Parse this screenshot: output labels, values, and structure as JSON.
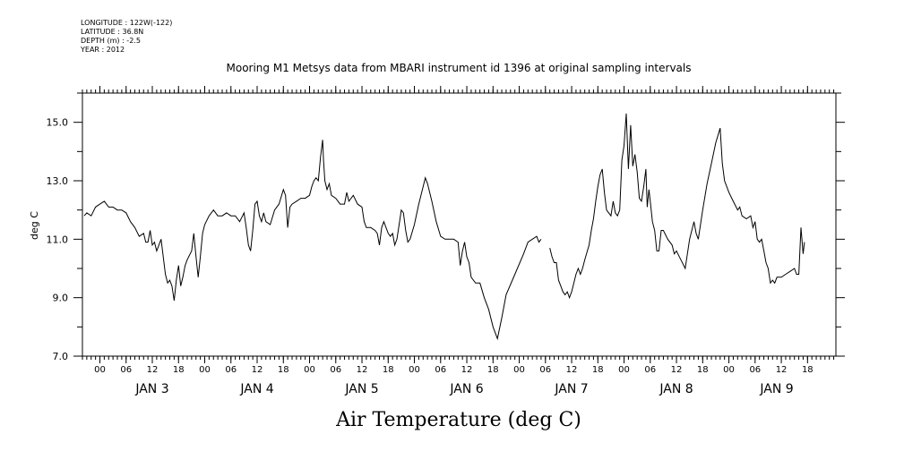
{
  "header": {
    "longitude": "LONGITUDE : 122W(-122)",
    "latitude": "LATITUDE : 36.8N",
    "depth": "DEPTH (m) : -2.5",
    "year": "YEAR : 2012"
  },
  "chart_data": {
    "type": "line",
    "title": "Mooring M1 Metsys data from MBARI instrument id 1396 at original sampling intervals",
    "xlabel": "Air Temperature (deg C)",
    "ylabel": "deg C",
    "ylim": [
      7.0,
      16.0
    ],
    "xlim_hours": [
      -4,
      134
    ],
    "y_ticks": [
      "7.0",
      "9.0",
      "11.0",
      "13.0",
      "15.0"
    ],
    "x_hour_ticks": [
      "00",
      "06",
      "12",
      "18",
      "00",
      "06",
      "12",
      "18",
      "00",
      "06",
      "12",
      "18",
      "00",
      "06",
      "12",
      "18",
      "00",
      "06",
      "12",
      "18",
      "00",
      "06",
      "12",
      "18",
      "00",
      "06",
      "12",
      "18"
    ],
    "day_labels": [
      "JAN  3",
      "JAN  4",
      "JAN  5",
      "JAN  6",
      "JAN  7",
      "JAN  8",
      "JAN  9"
    ],
    "grid": false,
    "series": [
      {
        "segments": [
          [
            [
              -3.6,
              11.8
            ],
            [
              -3,
              11.9
            ],
            [
              -2,
              11.8
            ],
            [
              -1,
              12.1
            ],
            [
              0,
              12.2
            ],
            [
              1,
              12.3
            ],
            [
              2,
              12.1
            ],
            [
              3,
              12.1
            ],
            [
              4,
              12.0
            ],
            [
              5,
              12.0
            ],
            [
              6,
              11.9
            ],
            [
              7,
              11.6
            ],
            [
              8,
              11.4
            ],
            [
              9,
              11.1
            ],
            [
              10,
              11.2
            ],
            [
              10.5,
              10.9
            ],
            [
              11,
              10.9
            ],
            [
              11.5,
              11.3
            ],
            [
              12,
              10.8
            ],
            [
              12.5,
              10.9
            ],
            [
              13,
              10.6
            ],
            [
              14,
              11.0
            ],
            [
              14.5,
              10.4
            ],
            [
              15,
              9.8
            ],
            [
              15.5,
              9.5
            ],
            [
              16,
              9.6
            ],
            [
              16.5,
              9.4
            ],
            [
              17,
              8.9
            ],
            [
              17.5,
              9.6
            ],
            [
              18,
              10.1
            ],
            [
              18.5,
              9.4
            ],
            [
              19,
              9.7
            ],
            [
              19.5,
              10.1
            ],
            [
              20,
              10.3
            ],
            [
              21,
              10.6
            ],
            [
              21.5,
              11.2
            ],
            [
              22,
              10.4
            ],
            [
              22.5,
              9.7
            ],
            [
              23,
              10.4
            ],
            [
              23.5,
              11.2
            ],
            [
              24,
              11.5
            ],
            [
              25,
              11.8
            ],
            [
              26,
              12.0
            ],
            [
              27,
              11.8
            ],
            [
              28,
              11.8
            ],
            [
              29,
              11.9
            ],
            [
              30,
              11.8
            ],
            [
              31,
              11.8
            ],
            [
              32,
              11.6
            ],
            [
              33,
              11.9
            ],
            [
              33.5,
              11.4
            ],
            [
              34,
              10.8
            ],
            [
              34.5,
              10.6
            ],
            [
              35,
              11.3
            ],
            [
              35.5,
              12.2
            ],
            [
              36,
              12.3
            ],
            [
              36.5,
              11.8
            ],
            [
              37,
              11.6
            ],
            [
              37.5,
              11.9
            ],
            [
              38,
              11.6
            ],
            [
              39,
              11.5
            ],
            [
              40,
              12.0
            ],
            [
              41,
              12.2
            ],
            [
              42,
              12.7
            ],
            [
              42.5,
              12.5
            ],
            [
              43,
              11.4
            ],
            [
              43.5,
              12.1
            ],
            [
              44,
              12.2
            ],
            [
              45,
              12.3
            ],
            [
              46,
              12.4
            ],
            [
              47,
              12.4
            ],
            [
              48,
              12.5
            ],
            [
              48.5,
              12.8
            ],
            [
              49,
              13.0
            ],
            [
              49.5,
              13.1
            ],
            [
              50,
              13.0
            ],
            [
              50.5,
              13.8
            ],
            [
              51,
              14.4
            ],
            [
              51.2,
              13.7
            ],
            [
              51.5,
              13.0
            ],
            [
              52,
              12.7
            ],
            [
              52.5,
              12.9
            ],
            [
              53,
              12.5
            ],
            [
              54,
              12.4
            ],
            [
              55,
              12.2
            ],
            [
              56,
              12.2
            ],
            [
              56.5,
              12.6
            ],
            [
              57,
              12.3
            ],
            [
              58,
              12.5
            ],
            [
              59,
              12.2
            ],
            [
              60,
              12.1
            ],
            [
              60.5,
              11.6
            ],
            [
              61,
              11.4
            ],
            [
              62,
              11.4
            ],
            [
              63,
              11.3
            ],
            [
              63.5,
              11.2
            ],
            [
              64,
              10.8
            ],
            [
              64.5,
              11.4
            ],
            [
              65,
              11.6
            ],
            [
              66,
              11.2
            ],
            [
              66.5,
              11.1
            ],
            [
              67,
              11.2
            ],
            [
              67.5,
              10.8
            ],
            [
              68,
              11.0
            ],
            [
              68.5,
              11.5
            ],
            [
              69,
              12.0
            ],
            [
              69.5,
              11.9
            ],
            [
              70,
              11.3
            ],
            [
              70.5,
              10.9
            ],
            [
              71,
              11.0
            ],
            [
              72,
              11.5
            ],
            [
              73,
              12.2
            ],
            [
              74,
              12.8
            ],
            [
              74.5,
              13.1
            ],
            [
              75,
              12.9
            ],
            [
              76,
              12.3
            ],
            [
              77,
              11.6
            ],
            [
              78,
              11.1
            ],
            [
              79,
              11.0
            ],
            [
              80,
              11.0
            ],
            [
              81,
              11.0
            ],
            [
              82,
              10.9
            ],
            [
              82.5,
              10.1
            ],
            [
              83,
              10.6
            ],
            [
              83.5,
              10.9
            ],
            [
              84,
              10.4
            ],
            [
              84.5,
              10.2
            ],
            [
              85,
              9.7
            ],
            [
              86,
              9.5
            ],
            [
              87,
              9.5
            ],
            [
              88,
              9.0
            ],
            [
              89,
              8.6
            ],
            [
              90,
              8.0
            ],
            [
              91,
              7.6
            ],
            [
              92,
              8.3
            ],
            [
              93,
              9.1
            ],
            [
              95,
              9.8
            ],
            [
              97,
              10.5
            ],
            [
              98,
              10.9
            ],
            [
              99,
              11.0
            ],
            [
              100,
              11.1
            ],
            [
              100.5,
              10.9
            ],
            [
              101,
              11.0
            ]
          ],
          [
            [
              103,
              10.7
            ],
            [
              103.5,
              10.4
            ],
            [
              104,
              10.2
            ],
            [
              104.5,
              10.2
            ],
            [
              105,
              9.6
            ],
            [
              105.5,
              9.4
            ],
            [
              106,
              9.2
            ],
            [
              106.5,
              9.1
            ],
            [
              107,
              9.2
            ],
            [
              107.5,
              9.0
            ],
            [
              108,
              9.2
            ],
            [
              108.5,
              9.5
            ],
            [
              109,
              9.8
            ],
            [
              109.5,
              10.0
            ],
            [
              110,
              9.8
            ],
            [
              110.5,
              10.0
            ],
            [
              111,
              10.3
            ],
            [
              112,
              10.8
            ],
            [
              112.5,
              11.3
            ],
            [
              113,
              11.7
            ],
            [
              113.5,
              12.3
            ],
            [
              114,
              12.8
            ],
            [
              114.5,
              13.2
            ],
            [
              115,
              13.4
            ],
            [
              115.5,
              12.6
            ],
            [
              116,
              12.0
            ],
            [
              117,
              11.8
            ],
            [
              117.5,
              12.3
            ],
            [
              118,
              11.9
            ],
            [
              118.5,
              11.8
            ],
            [
              119,
              12.0
            ],
            [
              119.5,
              13.7
            ],
            [
              120,
              14.2
            ],
            [
              120.5,
              15.3
            ],
            [
              121,
              13.4
            ],
            [
              121.5,
              14.9
            ],
            [
              122,
              13.5
            ],
            [
              122.5,
              13.9
            ],
            [
              123,
              13.3
            ],
            [
              123.5,
              12.4
            ],
            [
              124,
              12.3
            ],
            [
              124.5,
              12.8
            ],
            [
              125,
              13.4
            ],
            [
              125.3,
              12.1
            ],
            [
              125.7,
              12.7
            ],
            [
              126,
              12.3
            ],
            [
              126.5,
              11.6
            ],
            [
              127,
              11.3
            ],
            [
              127.5,
              10.6
            ],
            [
              128,
              10.6
            ],
            [
              128.5,
              11.3
            ],
            [
              129,
              11.3
            ],
            [
              130,
              11.0
            ],
            [
              131,
              10.8
            ],
            [
              131.5,
              10.5
            ],
            [
              132,
              10.6
            ],
            [
              133,
              10.3
            ],
            [
              134,
              10.0
            ],
            [
              135,
              11.0
            ],
            [
              136,
              11.6
            ],
            [
              136.5,
              11.2
            ],
            [
              137,
              11.0
            ],
            [
              138,
              12.0
            ],
            [
              139,
              12.9
            ],
            [
              140,
              13.6
            ],
            [
              141,
              14.3
            ],
            [
              142,
              14.8
            ],
            [
              142.5,
              13.6
            ],
            [
              143,
              13.0
            ],
            [
              144,
              12.6
            ],
            [
              145,
              12.3
            ],
            [
              146,
              12.0
            ],
            [
              146.5,
              12.1
            ],
            [
              147,
              11.8
            ],
            [
              148,
              11.7
            ],
            [
              149,
              11.8
            ],
            [
              149.5,
              11.4
            ],
            [
              150,
              11.6
            ],
            [
              150.5,
              11.0
            ],
            [
              151,
              10.9
            ],
            [
              151.5,
              11.0
            ],
            [
              152,
              10.6
            ],
            [
              152.5,
              10.2
            ],
            [
              153,
              10.0
            ],
            [
              153.5,
              9.5
            ],
            [
              154,
              9.6
            ],
            [
              154.5,
              9.5
            ],
            [
              155,
              9.7
            ],
            [
              156,
              9.7
            ],
            [
              157,
              9.8
            ],
            [
              158,
              9.9
            ],
            [
              159,
              10.0
            ],
            [
              159.5,
              9.8
            ],
            [
              160,
              9.8
            ],
            [
              160.5,
              11.4
            ],
            [
              161,
              10.5
            ],
            [
              161.3,
              10.9
            ]
          ]
        ]
      }
    ]
  }
}
